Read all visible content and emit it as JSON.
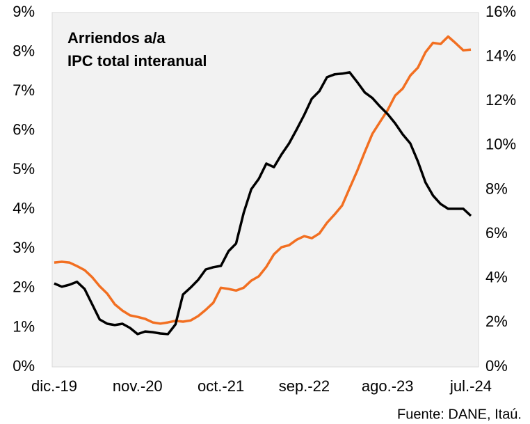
{
  "chart_data": {
    "type": "line",
    "categories": [
      "dic.-19",
      null,
      null,
      null,
      null,
      null,
      null,
      null,
      null,
      null,
      null,
      "nov.-20",
      null,
      null,
      null,
      null,
      null,
      null,
      null,
      null,
      null,
      null,
      "oct.-21",
      null,
      null,
      null,
      null,
      null,
      null,
      null,
      null,
      null,
      null,
      "sep.-22",
      null,
      null,
      null,
      null,
      null,
      null,
      null,
      null,
      null,
      null,
      "ago.-23",
      null,
      null,
      null,
      null,
      null,
      null,
      null,
      null,
      null,
      null,
      "jul.-24"
    ],
    "series": [
      {
        "name": "Arriendos a/a",
        "color": "#f26f21",
        "values": [
          2.65,
          2.67,
          2.65,
          2.56,
          2.46,
          2.28,
          2.05,
          1.86,
          1.59,
          1.43,
          1.31,
          1.27,
          1.22,
          1.13,
          1.1,
          1.13,
          1.17,
          1.15,
          1.18,
          1.29,
          1.45,
          1.63,
          2.01,
          1.98,
          1.94,
          2.01,
          2.19,
          2.3,
          2.54,
          2.86,
          3.04,
          3.09,
          3.23,
          3.32,
          3.27,
          3.39,
          3.66,
          3.87,
          4.1,
          4.54,
          4.98,
          5.46,
          5.92,
          6.22,
          6.52,
          6.89,
          7.07,
          7.4,
          7.6,
          7.99,
          8.23,
          8.2,
          8.39,
          8.22,
          8.04,
          8.06
        ]
      },
      {
        "name": "IPC total interanual",
        "color": "#000000",
        "axis": "y2",
        "values": [
          3.77,
          3.62,
          3.71,
          3.84,
          3.52,
          2.83,
          2.14,
          1.95,
          1.89,
          1.95,
          1.76,
          1.48,
          1.6,
          1.57,
          1.51,
          1.48,
          1.92,
          3.27,
          3.58,
          3.93,
          4.4,
          4.5,
          4.56,
          5.22,
          5.57,
          6.95,
          8.02,
          8.49,
          9.18,
          9.02,
          9.59,
          10.09,
          10.72,
          11.38,
          12.11,
          12.45,
          13.08,
          13.21,
          13.24,
          13.3,
          12.86,
          12.39,
          12.14,
          11.76,
          11.42,
          11.0,
          10.5,
          10.09,
          9.28,
          8.33,
          7.74,
          7.36,
          7.14,
          7.14,
          7.14,
          6.82
        ]
      }
    ],
    "ylim": [
      0,
      9
    ],
    "yticks": [
      {
        "value": 0,
        "label": "0%"
      },
      {
        "value": 1,
        "label": "1%"
      },
      {
        "value": 2,
        "label": "2%"
      },
      {
        "value": 3,
        "label": "3%"
      },
      {
        "value": 4,
        "label": "4%"
      },
      {
        "value": 5,
        "label": "5%"
      },
      {
        "value": 6,
        "label": "6%"
      },
      {
        "value": 7,
        "label": "7%"
      },
      {
        "value": 8,
        "label": "8%"
      },
      {
        "value": 9,
        "label": "9%"
      }
    ],
    "y2lim": [
      0,
      16
    ],
    "y2ticks": [
      {
        "value": 0,
        "label": "0%"
      },
      {
        "value": 2,
        "label": "2%"
      },
      {
        "value": 4,
        "label": "4%"
      },
      {
        "value": 6,
        "label": "6%"
      },
      {
        "value": 8,
        "label": "8%"
      },
      {
        "value": 10,
        "label": "10%"
      },
      {
        "value": 12,
        "label": "12%"
      },
      {
        "value": 14,
        "label": "14%"
      },
      {
        "value": 16,
        "label": "16%"
      }
    ],
    "source": "Fuente: DANE, Itaú."
  }
}
